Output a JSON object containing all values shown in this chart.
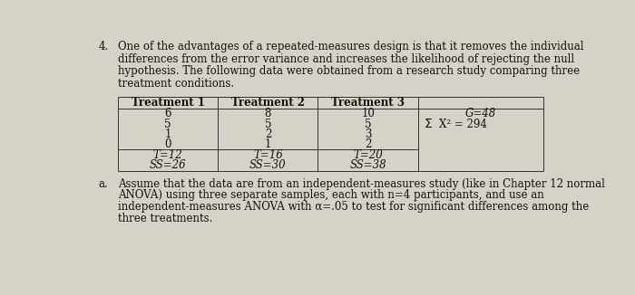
{
  "background_color": "#d6d2c8",
  "question_number": "4.",
  "intro_text": "One of the advantages of a repeated-measures design is that it removes the individual\ndifferences from the error variance and increases the likelihood of rejecting the null\nhypothesis. The following data were obtained from a research study comparing three\ntreatment conditions.",
  "table": {
    "col_headers": [
      "Treatment 1",
      "Treatment 2",
      "Treatment 3",
      ""
    ],
    "data_rows": [
      [
        "6",
        "8",
        "10"
      ],
      [
        "5",
        "5",
        "5"
      ],
      [
        "1",
        "2",
        "3"
      ],
      [
        "0",
        "1",
        "2"
      ]
    ],
    "summary_T": [
      "T=12",
      "T=16",
      "T=20"
    ],
    "summary_SS": [
      "SS=26",
      "SS=30",
      "SS=38"
    ],
    "side_row1": "G=48",
    "side_row2": "X² = 294"
  },
  "part_a_label": "a.",
  "part_a_text": "Assume that the data are from an independent-measures study (like in Chapter 12 normal\nANOVA) using three separate samples, each with n=4 participants, and use an\nindependent-measures ANOVA with α=.05 to test for significant differences among the\nthree treatments.",
  "font_size_body": 8.5,
  "font_size_table": 8.5,
  "text_color": "#111111",
  "table_line_color": "#333333",
  "fig_width": 7.0,
  "fig_height": 3.26,
  "dpi": 100
}
